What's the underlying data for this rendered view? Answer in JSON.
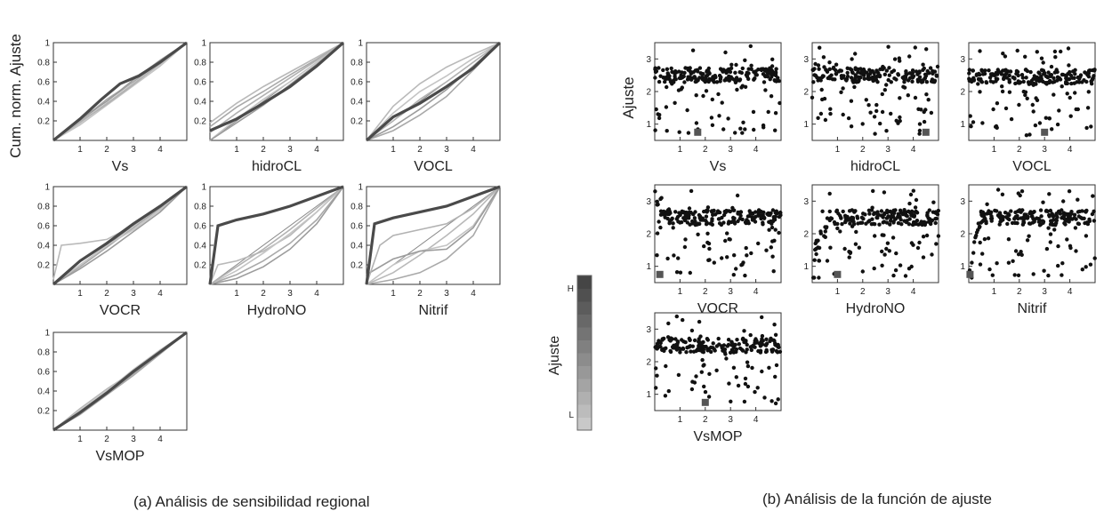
{
  "figure": {
    "caption_a": "(a) Análisis de sensibilidad regional",
    "caption_b": "(b) Análisis de la función de ajuste",
    "ylabel_a": "Cum. norm. Ajuste",
    "ylabel_b": "Ajuste"
  },
  "colorbar": {
    "label": "Ajuste",
    "high": "H",
    "low": "L",
    "colors": [
      "#c8c8c8",
      "#bcbcbc",
      "#b0b0b0",
      "#a4a4a4",
      "#989898",
      "#8c8c8c",
      "#808080",
      "#747474",
      "#686868",
      "#5c5c5c",
      "#505050",
      "#454545"
    ]
  },
  "chart_data": [
    {
      "group": "a",
      "type": "line",
      "xlabel": "Vs",
      "xticks": [
        1,
        2,
        3,
        4
      ],
      "yticks": [
        0.2,
        0.4,
        0.6,
        0.8,
        1
      ],
      "xlim": [
        0,
        5
      ],
      "ylim": [
        0,
        1
      ],
      "highlight": {
        "x": [
          0,
          1,
          1.8,
          2.5,
          3.2,
          4,
          5
        ],
        "y": [
          0,
          0.22,
          0.42,
          0.58,
          0.66,
          0.8,
          1
        ]
      },
      "series": [
        {
          "x": [
            0,
            1,
            2,
            3,
            4,
            5
          ],
          "y": [
            0,
            0.18,
            0.38,
            0.58,
            0.78,
            1
          ]
        },
        {
          "x": [
            0,
            1,
            2,
            3,
            4,
            5
          ],
          "y": [
            0,
            0.2,
            0.42,
            0.6,
            0.8,
            1
          ]
        },
        {
          "x": [
            0,
            1,
            2,
            3,
            4,
            5
          ],
          "y": [
            0,
            0.16,
            0.36,
            0.56,
            0.76,
            1
          ]
        },
        {
          "x": [
            0,
            1,
            2,
            3,
            4,
            5
          ],
          "y": [
            0,
            0.22,
            0.4,
            0.62,
            0.82,
            1
          ]
        },
        {
          "x": [
            0,
            1,
            2,
            3,
            4,
            5
          ],
          "y": [
            0,
            0.19,
            0.37,
            0.57,
            0.79,
            1
          ]
        }
      ]
    },
    {
      "group": "a",
      "type": "line",
      "xlabel": "hidroCL",
      "xticks": [
        1,
        2,
        3,
        4
      ],
      "yticks": [
        0.2,
        0.4,
        0.6,
        0.8,
        1
      ],
      "xlim": [
        0,
        5
      ],
      "ylim": [
        0,
        1
      ],
      "highlight": {
        "x": [
          0,
          1,
          2,
          3,
          4,
          5
        ],
        "y": [
          0.1,
          0.22,
          0.38,
          0.55,
          0.76,
          1
        ]
      },
      "series": [
        {
          "x": [
            0,
            1,
            2,
            3,
            4,
            5
          ],
          "y": [
            0.18,
            0.38,
            0.55,
            0.7,
            0.85,
            1
          ]
        },
        {
          "x": [
            0,
            1,
            2,
            3,
            4,
            5
          ],
          "y": [
            0.14,
            0.34,
            0.5,
            0.67,
            0.83,
            1
          ]
        },
        {
          "x": [
            0,
            1,
            2,
            3,
            4,
            5
          ],
          "y": [
            0,
            0.22,
            0.42,
            0.6,
            0.8,
            1
          ]
        },
        {
          "x": [
            0,
            1,
            2,
            3,
            4,
            5
          ],
          "y": [
            0,
            0.18,
            0.36,
            0.57,
            0.78,
            1
          ]
        },
        {
          "x": [
            0,
            1,
            2,
            3,
            4,
            5
          ],
          "y": [
            0.08,
            0.28,
            0.46,
            0.64,
            0.82,
            1
          ]
        }
      ]
    },
    {
      "group": "a",
      "type": "line",
      "xlabel": "VOCL",
      "xticks": [
        1,
        2,
        3,
        4
      ],
      "yticks": [
        0.2,
        0.4,
        0.6,
        0.8,
        1
      ],
      "xlim": [
        0,
        5
      ],
      "ylim": [
        0,
        1
      ],
      "highlight": {
        "x": [
          0,
          1,
          2,
          3,
          4,
          5
        ],
        "y": [
          0,
          0.24,
          0.38,
          0.55,
          0.74,
          1
        ]
      },
      "series": [
        {
          "x": [
            0,
            1,
            2,
            3,
            4,
            5
          ],
          "y": [
            0,
            0.35,
            0.58,
            0.75,
            0.88,
            1
          ]
        },
        {
          "x": [
            0,
            1,
            2,
            3,
            4,
            5
          ],
          "y": [
            0,
            0.1,
            0.26,
            0.45,
            0.72,
            1
          ]
        },
        {
          "x": [
            0,
            1,
            2,
            3,
            4,
            5
          ],
          "y": [
            0,
            0.28,
            0.5,
            0.66,
            0.84,
            1
          ]
        },
        {
          "x": [
            0,
            1,
            2,
            3,
            4,
            5
          ],
          "y": [
            0,
            0.14,
            0.32,
            0.52,
            0.76,
            1
          ]
        },
        {
          "x": [
            0,
            1,
            2,
            3,
            4,
            5
          ],
          "y": [
            0,
            0.2,
            0.42,
            0.6,
            0.8,
            1
          ]
        }
      ]
    },
    {
      "group": "a",
      "type": "line",
      "xlabel": "VOCR",
      "xticks": [
        1,
        2,
        3,
        4
      ],
      "yticks": [
        0.2,
        0.4,
        0.6,
        0.8,
        1
      ],
      "xlim": [
        0,
        5
      ],
      "ylim": [
        0,
        1
      ],
      "highlight": {
        "x": [
          0,
          1,
          2,
          3,
          4,
          5
        ],
        "y": [
          0,
          0.24,
          0.42,
          0.62,
          0.8,
          1
        ]
      },
      "series": [
        {
          "x": [
            0,
            0.3,
            1,
            2,
            3,
            4,
            5
          ],
          "y": [
            0.05,
            0.4,
            0.42,
            0.46,
            0.6,
            0.8,
            1
          ]
        },
        {
          "x": [
            0,
            1,
            2,
            3,
            4,
            5
          ],
          "y": [
            0,
            0.18,
            0.38,
            0.58,
            0.78,
            1
          ]
        },
        {
          "x": [
            0,
            1,
            2,
            3,
            4,
            5
          ],
          "y": [
            0,
            0.2,
            0.4,
            0.56,
            0.76,
            1
          ]
        },
        {
          "x": [
            0,
            1,
            2,
            3,
            4,
            5
          ],
          "y": [
            0,
            0.16,
            0.34,
            0.54,
            0.74,
            1
          ]
        }
      ]
    },
    {
      "group": "a",
      "type": "line",
      "xlabel": "HydroNO",
      "xticks": [
        1,
        2,
        3,
        4
      ],
      "yticks": [
        0.2,
        0.4,
        0.6,
        0.8,
        1
      ],
      "xlim": [
        0,
        5
      ],
      "ylim": [
        0,
        1
      ],
      "highlight": {
        "x": [
          0,
          0.3,
          1,
          2,
          3,
          4,
          5
        ],
        "y": [
          0,
          0.6,
          0.66,
          0.72,
          0.8,
          0.9,
          1
        ]
      },
      "series": [
        {
          "x": [
            0,
            0.3,
            1,
            2,
            3,
            4,
            5
          ],
          "y": [
            0,
            0.2,
            0.24,
            0.34,
            0.5,
            0.74,
            1
          ]
        },
        {
          "x": [
            0,
            1,
            2,
            3,
            4,
            5
          ],
          "y": [
            0,
            0.1,
            0.24,
            0.42,
            0.66,
            1
          ]
        },
        {
          "x": [
            0,
            1,
            2,
            3,
            4,
            5
          ],
          "y": [
            0,
            0.14,
            0.32,
            0.52,
            0.74,
            1
          ]
        },
        {
          "x": [
            0,
            1,
            2,
            3,
            4,
            5
          ],
          "y": [
            0,
            0.06,
            0.18,
            0.36,
            0.62,
            1
          ]
        },
        {
          "x": [
            0,
            1,
            2,
            3,
            4,
            5
          ],
          "y": [
            0,
            0.18,
            0.36,
            0.56,
            0.78,
            1
          ]
        }
      ]
    },
    {
      "group": "a",
      "type": "line",
      "xlabel": "Nitrif",
      "xticks": [
        1,
        2,
        3,
        4
      ],
      "yticks": [
        0.2,
        0.4,
        0.6,
        0.8,
        1
      ],
      "xlim": [
        0,
        5
      ],
      "ylim": [
        0,
        1
      ],
      "highlight": {
        "x": [
          0,
          0.3,
          1,
          2,
          3,
          4,
          5
        ],
        "y": [
          0,
          0.62,
          0.68,
          0.74,
          0.8,
          0.9,
          1
        ]
      },
      "series": [
        {
          "x": [
            0,
            1,
            2,
            3,
            4,
            5
          ],
          "y": [
            0,
            0.12,
            0.3,
            0.5,
            0.72,
            1
          ]
        },
        {
          "x": [
            0,
            1,
            2,
            3,
            4,
            5
          ],
          "y": [
            0,
            0.05,
            0.12,
            0.26,
            0.5,
            1
          ]
        },
        {
          "x": [
            0,
            1,
            2,
            3,
            4,
            5
          ],
          "y": [
            0,
            0.2,
            0.34,
            0.4,
            0.6,
            1
          ]
        },
        {
          "x": [
            0,
            1,
            2,
            3,
            4,
            5
          ],
          "y": [
            0.1,
            0.26,
            0.34,
            0.36,
            0.58,
            1
          ]
        },
        {
          "x": [
            0,
            0.5,
            1,
            2,
            3,
            4,
            5
          ],
          "y": [
            0,
            0.4,
            0.5,
            0.56,
            0.62,
            0.78,
            1
          ]
        }
      ]
    },
    {
      "group": "a",
      "type": "line",
      "xlabel": "VsMOP",
      "xticks": [
        1,
        2,
        3,
        4
      ],
      "yticks": [
        0.2,
        0.4,
        0.6,
        0.8,
        1
      ],
      "xlim": [
        0,
        5
      ],
      "ylim": [
        0,
        1
      ],
      "highlight": {
        "x": [
          0,
          1,
          2,
          3,
          4,
          5
        ],
        "y": [
          0,
          0.18,
          0.38,
          0.6,
          0.8,
          1
        ]
      },
      "series": [
        {
          "x": [
            0,
            1,
            2,
            3,
            4,
            5
          ],
          "y": [
            0,
            0.22,
            0.42,
            0.6,
            0.8,
            1
          ]
        },
        {
          "x": [
            0,
            1,
            2,
            3,
            4,
            5
          ],
          "y": [
            0,
            0.16,
            0.36,
            0.56,
            0.78,
            1
          ]
        },
        {
          "x": [
            0,
            1,
            2,
            3,
            4,
            5
          ],
          "y": [
            0,
            0.2,
            0.4,
            0.62,
            0.82,
            1
          ]
        },
        {
          "x": [
            0,
            1,
            2,
            3,
            4,
            5
          ],
          "y": [
            0,
            0.18,
            0.37,
            0.58,
            0.79,
            1
          ]
        }
      ]
    },
    {
      "group": "b",
      "type": "scatter",
      "xlabel": "Vs",
      "xticks": [
        1,
        2,
        3,
        4
      ],
      "yticks": [
        1,
        2,
        3
      ],
      "xlim": [
        0,
        5
      ],
      "ylim": [
        0.5,
        3.5
      ],
      "profile": "flat",
      "band": 2.5,
      "best": {
        "x": 1.7,
        "y": 0.75
      }
    },
    {
      "group": "b",
      "type": "scatter",
      "xlabel": "hidroCL",
      "xticks": [
        1,
        2,
        3,
        4
      ],
      "yticks": [
        1,
        2,
        3
      ],
      "xlim": [
        0,
        5
      ],
      "ylim": [
        0.5,
        3.5
      ],
      "profile": "flat",
      "band": 2.5,
      "best": {
        "x": 4.5,
        "y": 0.75
      }
    },
    {
      "group": "b",
      "type": "scatter",
      "xlabel": "VOCL",
      "xticks": [
        1,
        2,
        3,
        4
      ],
      "yticks": [
        1,
        2,
        3
      ],
      "xlim": [
        0,
        5
      ],
      "ylim": [
        0.5,
        3.5
      ],
      "profile": "flat",
      "band": 2.45,
      "best": {
        "x": 3.0,
        "y": 0.75
      }
    },
    {
      "group": "b",
      "type": "scatter",
      "xlabel": "VOCR",
      "xticks": [
        1,
        2,
        3,
        4
      ],
      "yticks": [
        1,
        2,
        3
      ],
      "xlim": [
        0,
        5
      ],
      "ylim": [
        0.5,
        3.5
      ],
      "profile": "drop",
      "band": 2.5,
      "best": {
        "x": 0.2,
        "y": 0.75
      }
    },
    {
      "group": "b",
      "type": "scatter",
      "xlabel": "HydroNO",
      "xticks": [
        1,
        2,
        3,
        4
      ],
      "yticks": [
        1,
        2,
        3
      ],
      "xlim": [
        0,
        5
      ],
      "ylim": [
        0.5,
        3.5
      ],
      "profile": "rise",
      "band": 2.5,
      "best": {
        "x": 1.0,
        "y": 0.75
      }
    },
    {
      "group": "b",
      "type": "scatter",
      "xlabel": "Nitrif",
      "xticks": [
        1,
        2,
        3,
        4
      ],
      "yticks": [
        1,
        2,
        3
      ],
      "xlim": [
        0,
        5
      ],
      "ylim": [
        0.5,
        3.5
      ],
      "profile": "steep",
      "band": 2.5,
      "best": {
        "x": 0.05,
        "y": 0.75
      }
    },
    {
      "group": "b",
      "type": "scatter",
      "xlabel": "VsMOP",
      "xticks": [
        1,
        2,
        3,
        4
      ],
      "yticks": [
        1,
        2,
        3
      ],
      "xlim": [
        0,
        5
      ],
      "ylim": [
        0.5,
        3.5
      ],
      "profile": "flat",
      "band": 2.5,
      "best": {
        "x": 2.0,
        "y": 0.75
      }
    }
  ]
}
